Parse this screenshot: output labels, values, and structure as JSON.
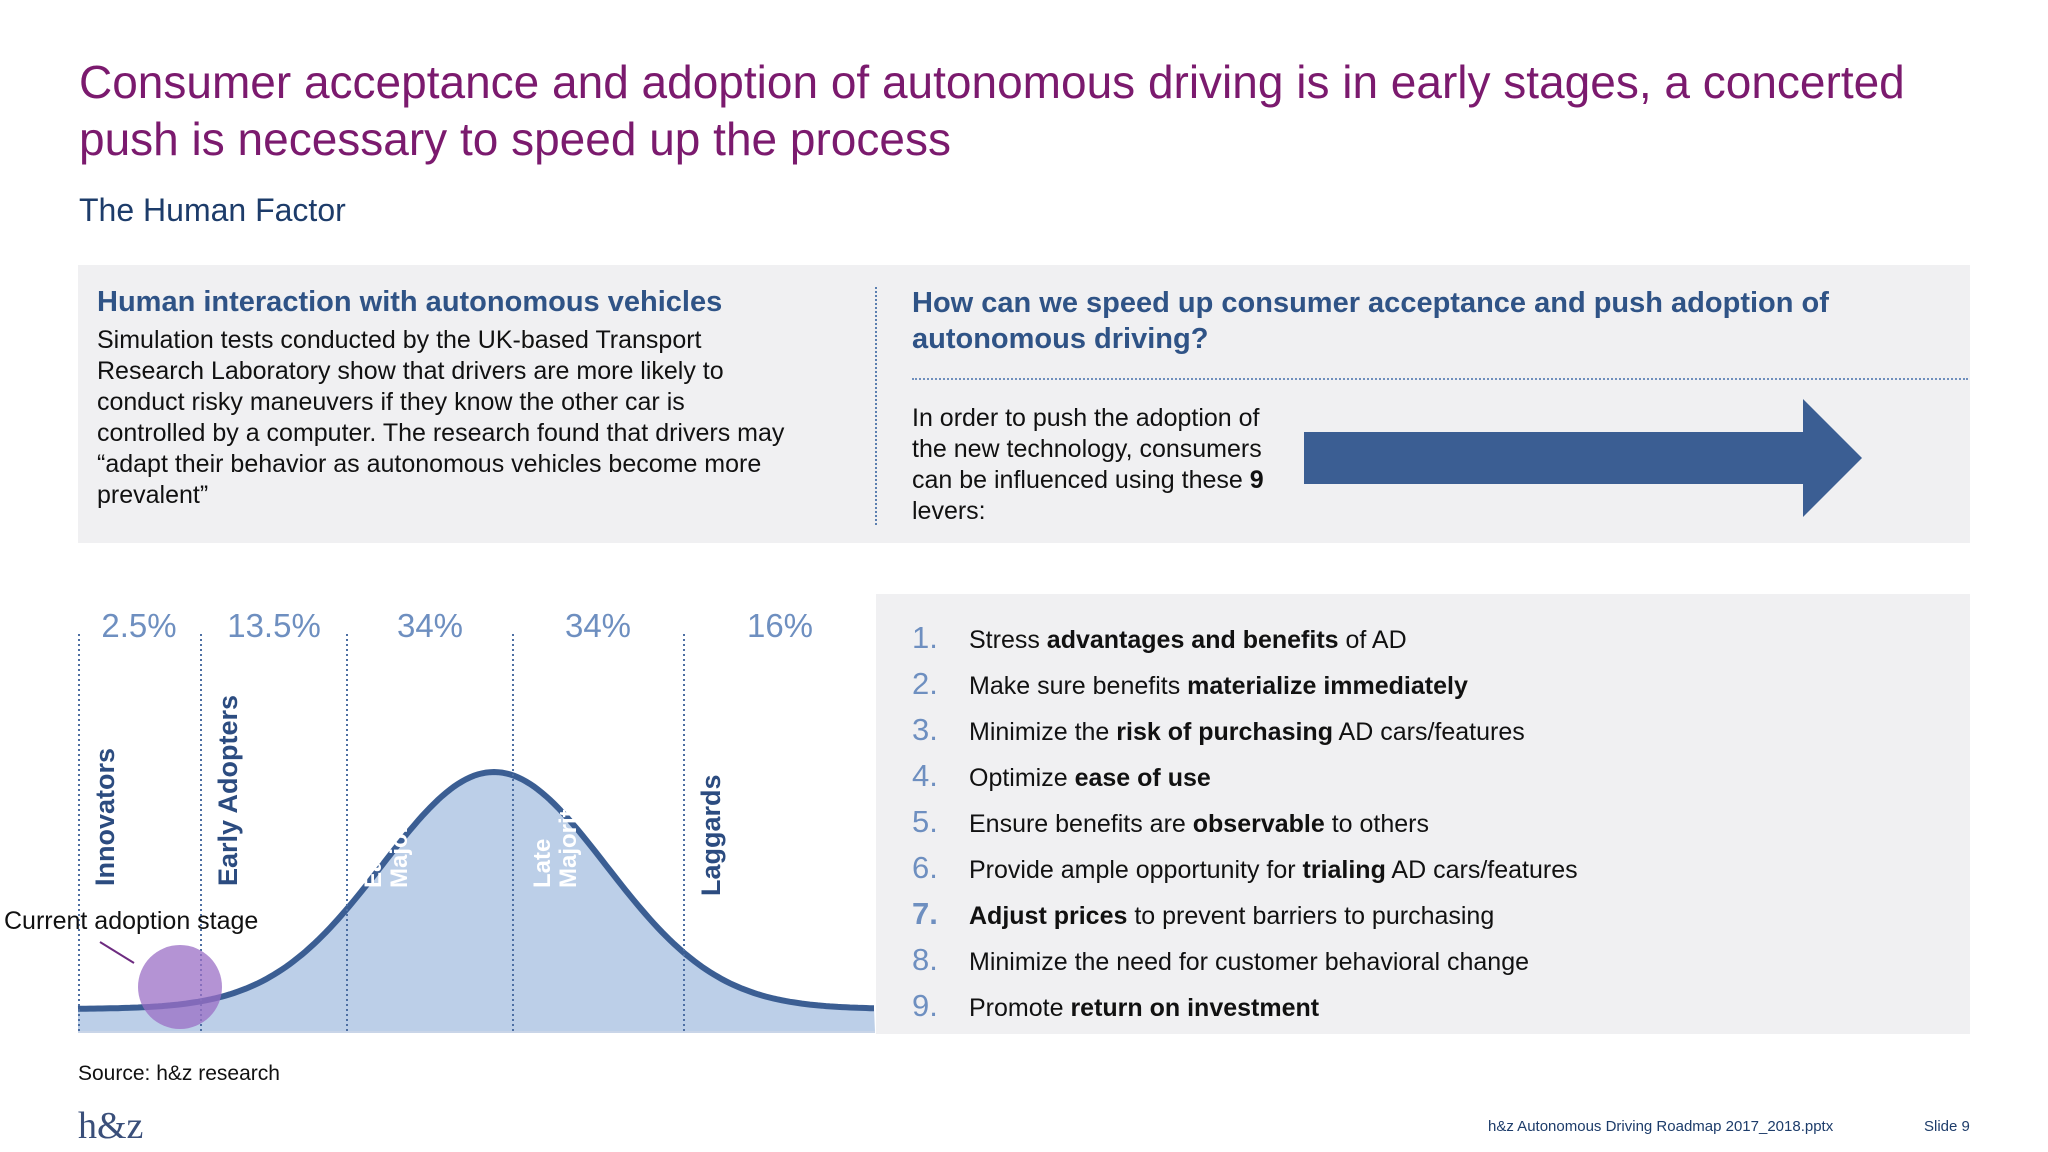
{
  "title": "Consumer acceptance and adoption of autonomous driving is in early stages, a concerted push is necessary to speed up the process",
  "subtitle": "The Human Factor",
  "left_panel": {
    "heading": "Human interaction with autonomous vehicles",
    "body": "Simulation tests conducted by the UK-based Transport Research Laboratory show that drivers are more likely to conduct risky maneuvers if they know the other car is controlled by a computer. The research found that drivers may “adapt their behavior as autonomous vehicles become more prevalent”"
  },
  "right_panel": {
    "heading": "How can we speed up consumer acceptance and push adoption of autonomous driving?",
    "body_prefix": "In order to push the adoption of the new technology, consumers can be influenced using these ",
    "body_bold": "9",
    "body_suffix": " levers:"
  },
  "adoption_curve": {
    "segments": [
      {
        "percent": "2.5%",
        "label": "Innovators",
        "label_line2": ""
      },
      {
        "percent": "13.5%",
        "label": "Early Adopters",
        "label_line2": ""
      },
      {
        "percent": "34%",
        "label": "Early",
        "label_line2": "Majority"
      },
      {
        "percent": "34%",
        "label": "Late",
        "label_line2": "Majority"
      },
      {
        "percent": "16%",
        "label": "Laggards",
        "label_line2": ""
      }
    ],
    "current_stage_label": "Current adoption stage",
    "colors": {
      "fill": "#bccfe8",
      "line": "#3b5e93",
      "dividers": "#4d6fa3",
      "marker": "#9b6fc6"
    }
  },
  "levers": [
    {
      "num": "1.",
      "parts": [
        {
          "t": "Stress ",
          "b": false
        },
        {
          "t": "advantages and benefits",
          "b": true
        },
        {
          "t": " of AD",
          "b": false
        }
      ]
    },
    {
      "num": "2.",
      "parts": [
        {
          "t": "Make sure benefits ",
          "b": false
        },
        {
          "t": "materialize immediately",
          "b": true
        }
      ]
    },
    {
      "num": "3.",
      "parts": [
        {
          "t": "Minimize the ",
          "b": false
        },
        {
          "t": "risk of purchasing",
          "b": true
        },
        {
          "t": " AD cars/features",
          "b": false
        }
      ]
    },
    {
      "num": "4.",
      "parts": [
        {
          "t": "Optimize ",
          "b": false
        },
        {
          "t": "ease of use",
          "b": true
        }
      ]
    },
    {
      "num": "5.",
      "parts": [
        {
          "t": "Ensure benefits are ",
          "b": false
        },
        {
          "t": "observable",
          "b": true
        },
        {
          "t": " to others",
          "b": false
        }
      ]
    },
    {
      "num": "6.",
      "parts": [
        {
          "t": "Provide ample opportunity for ",
          "b": false
        },
        {
          "t": "trialing",
          "b": true
        },
        {
          "t": " AD cars/features",
          "b": false
        }
      ]
    },
    {
      "num": "7.",
      "parts": [
        {
          "t": "Adjust prices",
          "b": true
        },
        {
          "t": " to prevent barriers to purchasing",
          "b": false
        }
      ]
    },
    {
      "num": "8.",
      "parts": [
        {
          "t": "Minimize the need for customer behavioral change",
          "b": false
        }
      ]
    },
    {
      "num": "9.",
      "parts": [
        {
          "t": "Promote ",
          "b": false
        },
        {
          "t": "return on investment",
          "b": true
        }
      ]
    }
  ],
  "source": "Source: h&z research",
  "logo": "h&z",
  "footer": {
    "file": "h&z Autonomous Driving Roadmap 2017_2018.pptx",
    "slide": "Slide 9"
  },
  "colors": {
    "title": "#7b1a6e",
    "accent": "#2f5386",
    "arrow": "#3b5e93",
    "panel": "#f0f0f2"
  }
}
